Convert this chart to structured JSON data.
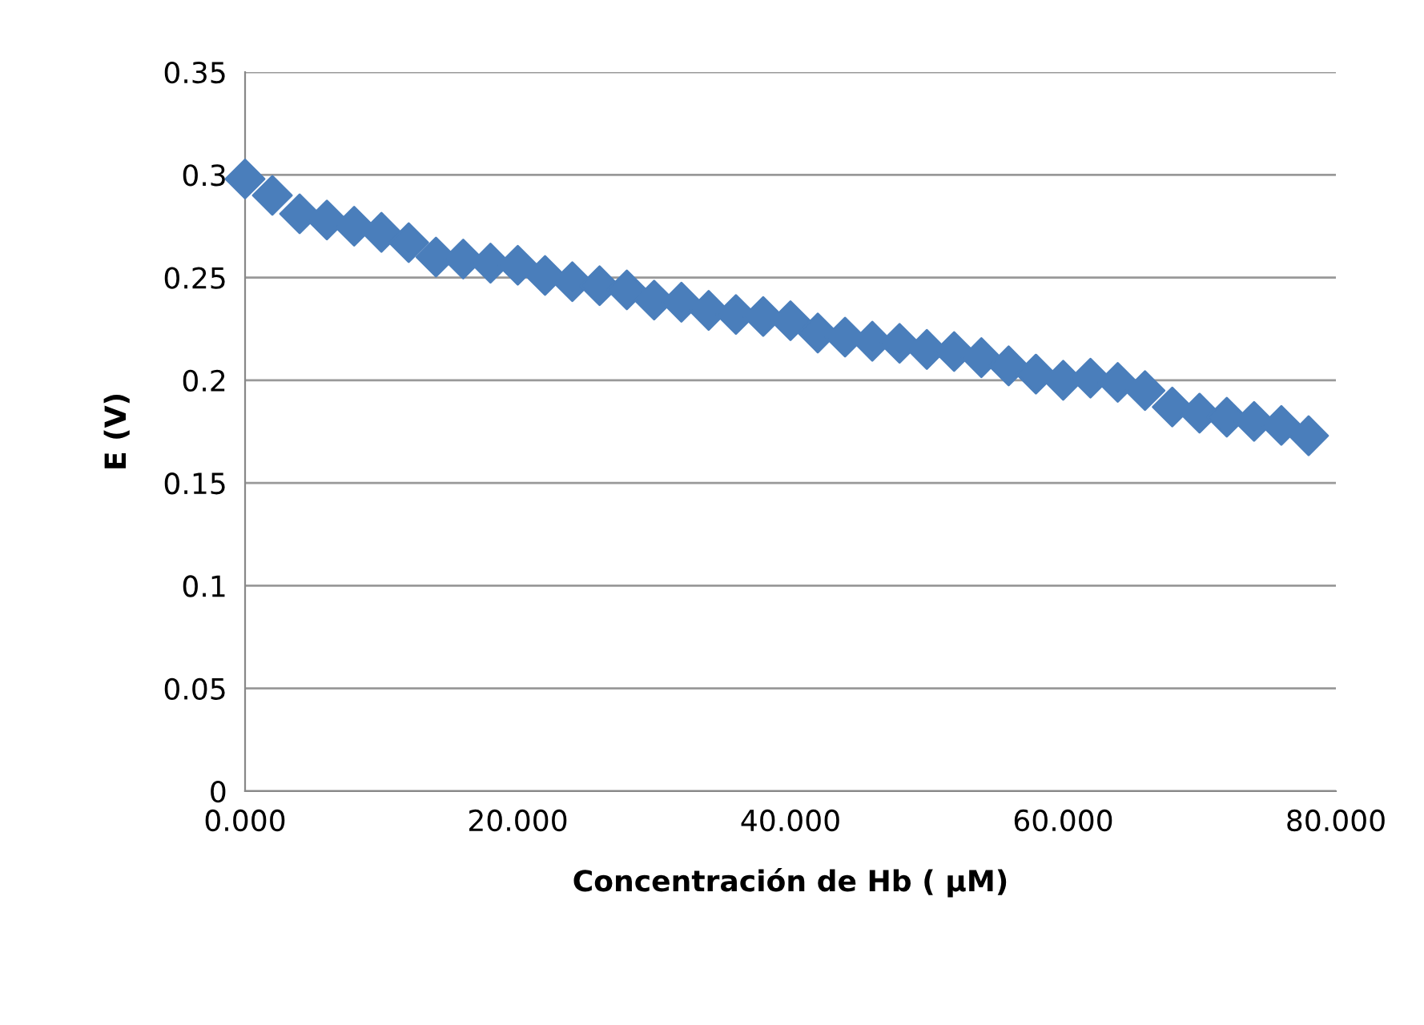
{
  "chart_data": {
    "type": "scatter",
    "xlabel": "Concentración de Hb ( μM)",
    "ylabel": "E (V)",
    "x": [
      0,
      2,
      4,
      6,
      8,
      10,
      12,
      14,
      16,
      18,
      20,
      22,
      24,
      26,
      28,
      30,
      32,
      34,
      36,
      38,
      40,
      42,
      44,
      46,
      48,
      50,
      52,
      54,
      56,
      58,
      60,
      62,
      64,
      66,
      68,
      70,
      72,
      74,
      76,
      78
    ],
    "series": [
      {
        "color": "#4a7ebb",
        "values": [
          0.298,
          0.29,
          0.281,
          0.278,
          0.275,
          0.272,
          0.267,
          0.26,
          0.259,
          0.257,
          0.256,
          0.251,
          0.248,
          0.246,
          0.244,
          0.239,
          0.238,
          0.234,
          0.232,
          0.231,
          0.229,
          0.223,
          0.221,
          0.219,
          0.218,
          0.215,
          0.214,
          0.211,
          0.207,
          0.203,
          0.2,
          0.201,
          0.199,
          0.195,
          0.187,
          0.184,
          0.182,
          0.18,
          0.178,
          0.173
        ]
      }
    ],
    "marker": "diamond",
    "xlim": [
      0,
      80
    ],
    "xticks": [
      {
        "value": 0,
        "label": "0.000"
      },
      {
        "value": 20,
        "label": "20.000"
      },
      {
        "value": 40,
        "label": "40.000"
      },
      {
        "value": 60,
        "label": "60.000"
      },
      {
        "value": 80,
        "label": "80.000"
      }
    ],
    "ylim": [
      0,
      0.35
    ],
    "yticks": [
      {
        "value": 0,
        "label": "0"
      },
      {
        "value": 0.05,
        "label": "0.05"
      },
      {
        "value": 0.1,
        "label": "0.1"
      },
      {
        "value": 0.15,
        "label": "0.15"
      },
      {
        "value": 0.2,
        "label": "0.2"
      },
      {
        "value": 0.25,
        "label": "0.25"
      },
      {
        "value": 0.3,
        "label": "0.3"
      },
      {
        "value": 0.35,
        "label": "0.35"
      }
    ],
    "grid": "y",
    "legend": false
  }
}
